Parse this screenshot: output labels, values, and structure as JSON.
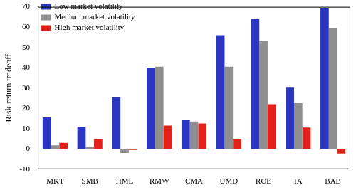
{
  "chart_data": {
    "type": "bar",
    "y_label": "Risk-return tradeoff",
    "categories": [
      "MKT",
      "SMB",
      "HML",
      "RMW",
      "CMA",
      "UMD",
      "ROE",
      "IA",
      "BAB"
    ],
    "series": [
      {
        "name": "Low market volatility",
        "color": "#2b36c0",
        "values": [
          15.5,
          11,
          25.5,
          40,
          14.5,
          56,
          64,
          30.5,
          69.5
        ]
      },
      {
        "name": "Medium market volatility",
        "color": "#8f8f8f",
        "values": [
          1.8,
          1,
          -2,
          40.5,
          13.5,
          40.5,
          53,
          22.5,
          59.5
        ]
      },
      {
        "name": "High market volatility",
        "color": "#e3211b",
        "values": [
          3,
          4.7,
          -0.5,
          11.5,
          12.5,
          5,
          22,
          10.5,
          -2.3
        ]
      }
    ],
    "ylim": [
      -10,
      70
    ],
    "yticks": [
      -10,
      0,
      10,
      20,
      30,
      40,
      50,
      60,
      70
    ],
    "grid": false,
    "legend": "upper left"
  }
}
